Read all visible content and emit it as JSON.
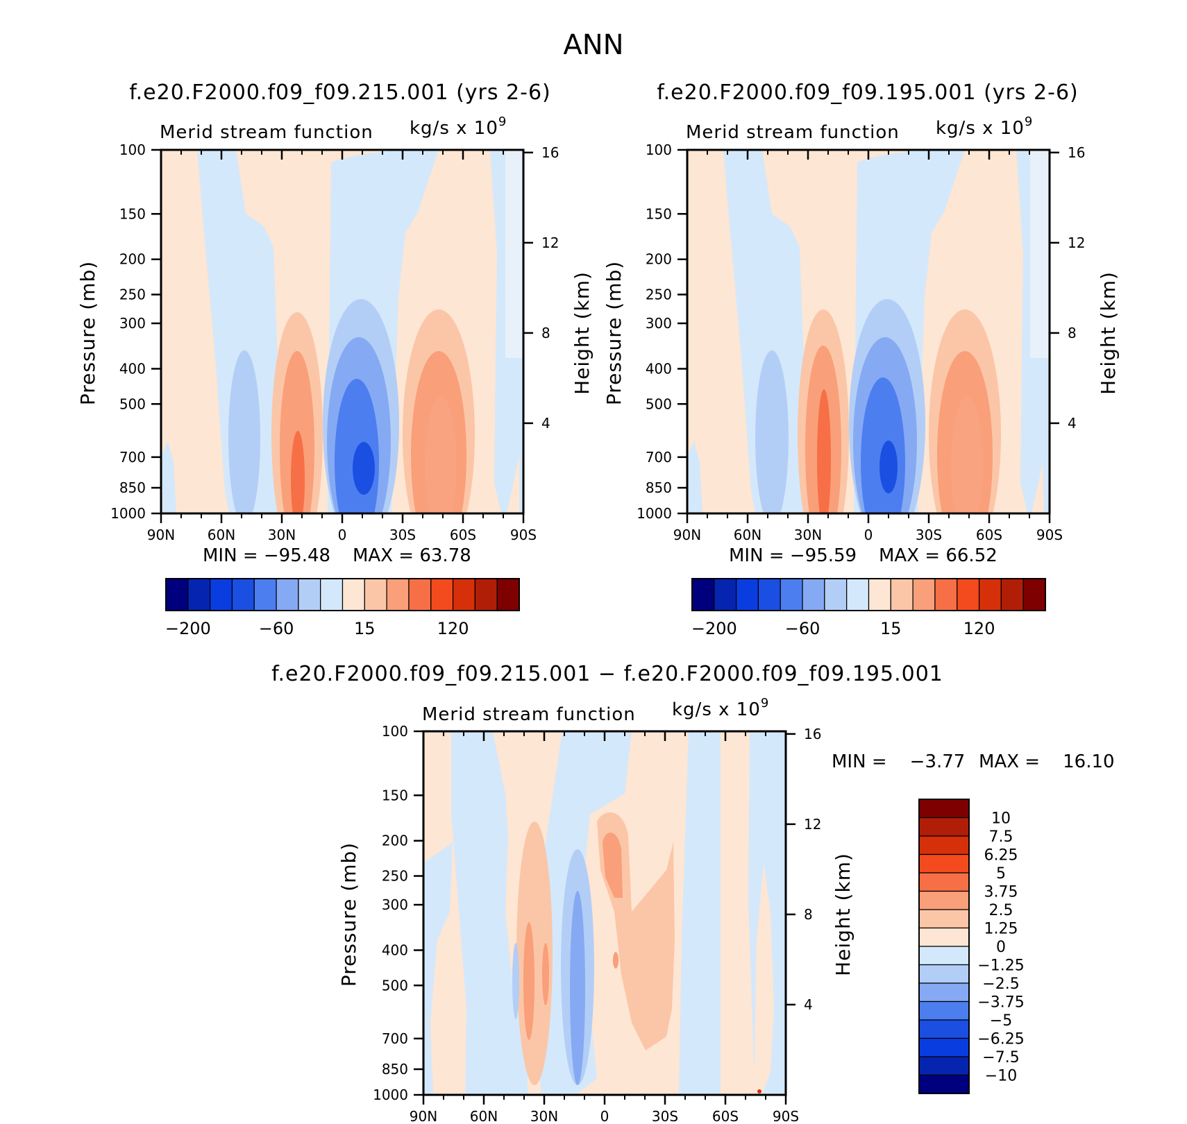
{
  "figure": {
    "title": "ANN",
    "shared": {
      "left_title": "Merid stream function",
      "right_units": "kg/s x 10",
      "right_units_exp": "9",
      "ylabel_left": "Pressure (mb)",
      "ylabel_right": "Height (km)"
    }
  },
  "chart_data": [
    {
      "type": "heatmap",
      "title": "f.e20.F2000.f09_f09.215.001 (yrs 2-6)",
      "subtitle_left": "Merid stream function",
      "subtitle_right": "kg/s x 10^9",
      "x_ticks": [
        "90N",
        "60N",
        "30N",
        "0",
        "30S",
        "60S",
        "90S"
      ],
      "x_values": [
        90,
        60,
        30,
        0,
        -30,
        -60,
        -90
      ],
      "y_ticks": [
        100,
        150,
        200,
        250,
        300,
        400,
        500,
        700,
        850,
        1000
      ],
      "y_scale": "log",
      "y2_ticks": [
        16,
        12,
        8,
        4
      ],
      "ylabel": "Pressure (mb)",
      "y2label": "Height (km)",
      "min_label": "MIN = −95.48",
      "max_label": "MAX = 63.78",
      "colorbar_labels": [
        "−200",
        "−60",
        "15",
        "120"
      ],
      "cells": [
        {
          "lat": 48,
          "p": 450,
          "value": -20,
          "dlat": 8,
          "dp": 0.45
        },
        {
          "lat": 17,
          "p": 420,
          "value": 30,
          "dlat": 9,
          "dp": 0.55
        },
        {
          "lat": 16,
          "p": 600,
          "value": 50,
          "dlat": 4,
          "dp": 0.22
        },
        {
          "lat": -10,
          "p": 430,
          "value": -45,
          "dlat": 11,
          "dp": 0.5
        },
        {
          "lat": -10,
          "p": 760,
          "value": -95,
          "dlat": 3,
          "dp": 0.1
        },
        {
          "lat": -47,
          "p": 480,
          "value": 30,
          "dlat": 10,
          "dp": 0.45
        }
      ]
    },
    {
      "type": "heatmap",
      "title": "f.e20.F2000.f09_f09.195.001 (yrs 2-6)",
      "subtitle_left": "Merid stream function",
      "subtitle_right": "kg/s x 10^9",
      "x_ticks": [
        "90N",
        "60N",
        "30N",
        "0",
        "30S",
        "60S",
        "90S"
      ],
      "x_values": [
        90,
        60,
        30,
        0,
        -30,
        -60,
        -90
      ],
      "y_ticks": [
        100,
        150,
        200,
        250,
        300,
        400,
        500,
        700,
        850,
        1000
      ],
      "y_scale": "log",
      "y2_ticks": [
        16,
        12,
        8,
        4
      ],
      "ylabel": "Pressure (mb)",
      "y2label": "Height (km)",
      "min_label": "MIN = −95.59",
      "max_label": "MAX = 66.52",
      "colorbar_labels": [
        "−200",
        "−60",
        "15",
        "120"
      ],
      "cells": [
        {
          "lat": 48,
          "p": 450,
          "value": -20,
          "dlat": 8,
          "dp": 0.45
        },
        {
          "lat": 17,
          "p": 420,
          "value": 35,
          "dlat": 9,
          "dp": 0.55
        },
        {
          "lat": 16,
          "p": 560,
          "value": 55,
          "dlat": 4,
          "dp": 0.3
        },
        {
          "lat": -10,
          "p": 430,
          "value": -45,
          "dlat": 11,
          "dp": 0.5
        },
        {
          "lat": -10,
          "p": 760,
          "value": -95,
          "dlat": 3,
          "dp": 0.1
        },
        {
          "lat": -47,
          "p": 480,
          "value": 30,
          "dlat": 10,
          "dp": 0.45
        }
      ]
    },
    {
      "type": "heatmap",
      "title": "f.e20.F2000.f09_f09.215.001 − f.e20.F2000.f09_f09.195.001",
      "subtitle_left": "Merid stream function",
      "subtitle_right": "kg/s x 10^9",
      "x_ticks": [
        "90N",
        "60N",
        "30N",
        "0",
        "30S",
        "60S",
        "90S"
      ],
      "x_values": [
        90,
        60,
        30,
        0,
        -30,
        -60,
        -90
      ],
      "y_ticks": [
        100,
        150,
        200,
        250,
        300,
        400,
        500,
        700,
        850,
        1000
      ],
      "y_scale": "log",
      "y2_ticks": [
        16,
        12,
        8,
        4
      ],
      "ylabel": "Pressure (mb)",
      "y2label": "Height (km)",
      "min_label": "MIN =    −3.77",
      "max_label": "MAX =    16.10",
      "colorbar_labels": [
        "10",
        "7.5",
        "6.25",
        "5",
        "3.75",
        "2.5",
        "1.25",
        "0",
        "−1.25",
        "−2.5",
        "−3.75",
        "−5",
        "−6.25",
        "−7.5",
        "−10"
      ],
      "cells": [
        {
          "lat": 32,
          "p": 420,
          "value": 2,
          "dlat": 5,
          "dp": 0.55
        },
        {
          "lat": 33,
          "p": 560,
          "value": 3,
          "dlat": 3,
          "dp": 0.25
        },
        {
          "lat": 12,
          "p": 480,
          "value": -2,
          "dlat": 4,
          "dp": 0.6
        },
        {
          "lat": -6,
          "p": 280,
          "value": 2,
          "dlat": 4,
          "dp": 0.3
        },
        {
          "lat": -20,
          "p": 450,
          "value": 1.5,
          "dlat": 6,
          "dp": 0.55
        }
      ]
    }
  ]
}
